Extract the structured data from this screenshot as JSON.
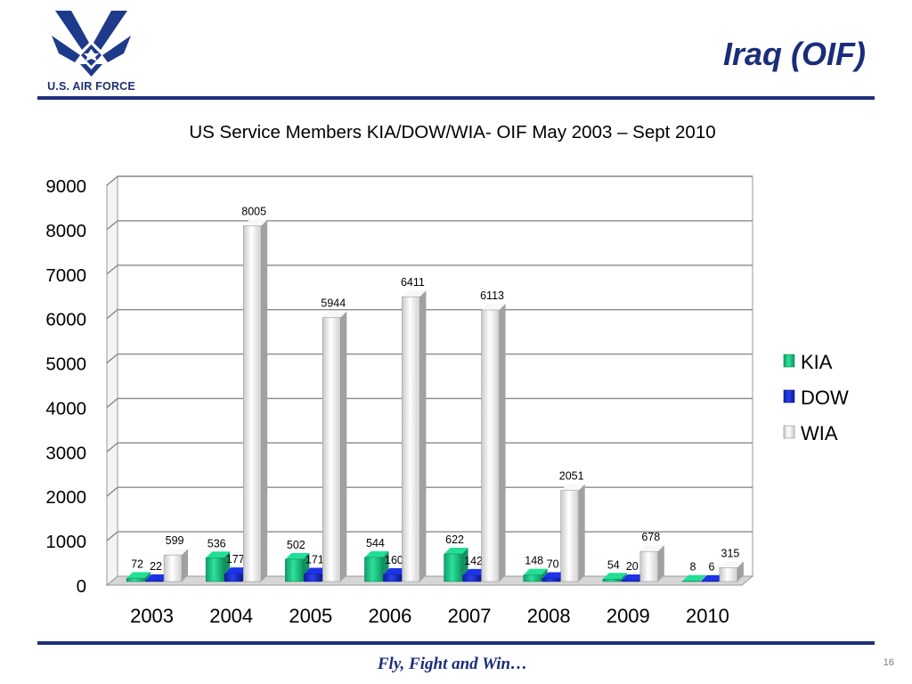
{
  "slide": {
    "title": "Iraq (OIF)",
    "logo_text": "U.S. AIR FORCE",
    "footer_motto": "Fly, Fight and Win…",
    "page_number": "16"
  },
  "colors": {
    "brand_blue": "#1f2f7a",
    "kia": "#1fcf8a",
    "dow": "#1a2fd6",
    "wia": "#e6e6e6"
  },
  "chart_data": {
    "type": "bar",
    "title": "US Service Members KIA/DOW/WIA- OIF May 2003 – Sept 2010",
    "categories": [
      "2003",
      "2004",
      "2005",
      "2006",
      "2007",
      "2008",
      "2009",
      "2010"
    ],
    "series": [
      {
        "name": "KIA",
        "values": [
          72,
          536,
          502,
          544,
          622,
          148,
          54,
          8
        ]
      },
      {
        "name": "DOW",
        "values": [
          22,
          177,
          171,
          160,
          142,
          70,
          20,
          6
        ]
      },
      {
        "name": "WIA",
        "values": [
          599,
          8005,
          5944,
          6411,
          6113,
          2051,
          678,
          315
        ]
      }
    ],
    "ylim": [
      0,
      9000
    ],
    "yticks": [
      0,
      1000,
      2000,
      3000,
      4000,
      5000,
      6000,
      7000,
      8000,
      9000
    ],
    "grid": true,
    "legend": "right",
    "data_labels": true
  }
}
